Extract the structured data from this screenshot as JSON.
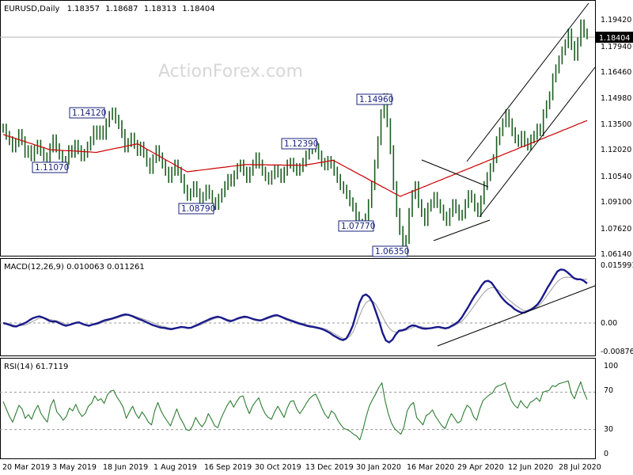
{
  "chart_data": {
    "type": "line",
    "symbol": "EURUSD,Daily",
    "ohlc": {
      "open": "1.18357",
      "high": "1.18687",
      "low": "1.18313",
      "close": "1.18404"
    },
    "current_price_label": "1.18404",
    "watermark": "ActionForex.com",
    "price_axis_ticks": [
      "1.19420",
      "1.17940",
      "1.16460",
      "1.14980",
      "1.13500",
      "1.12020",
      "1.10540",
      "1.09100",
      "1.07620",
      "1.06140"
    ],
    "price_annotations": [
      "1.14120",
      "1.11070",
      "1.08790",
      "1.12390",
      "1.14960",
      "1.07770",
      "1.06350"
    ],
    "x_axis_labels": [
      "20 Mar 2019",
      "3 May 2019",
      "18 Jun 2019",
      "1 Aug 2019",
      "16 Sep 2019",
      "30 Oct 2019",
      "13 Dec 2019",
      "30 Jan 2020",
      "16 Mar 2020",
      "29 Apr 2020",
      "12 Jun 2020",
      "28 Jul 2020"
    ],
    "price": {
      "ylim": [
        1.0614,
        1.2016
      ],
      "close": [
        1.132,
        1.128,
        1.125,
        1.121,
        1.124,
        1.129,
        1.125,
        1.118,
        1.12,
        1.116,
        1.12,
        1.123,
        1.119,
        1.116,
        1.113,
        1.121,
        1.126,
        1.121,
        1.117,
        1.112,
        1.114,
        1.12,
        1.118,
        1.123,
        1.12,
        1.116,
        1.118,
        1.122,
        1.125,
        1.131,
        1.128,
        1.131,
        1.128,
        1.135,
        1.139,
        1.141,
        1.137,
        1.134,
        1.129,
        1.121,
        1.124,
        1.127,
        1.123,
        1.119,
        1.122,
        1.118,
        1.113,
        1.109,
        1.115,
        1.12,
        1.116,
        1.112,
        1.108,
        1.104,
        1.108,
        1.112,
        1.108,
        1.104,
        1.098,
        1.094,
        1.096,
        1.1,
        1.096,
        1.092,
        1.094,
        1.098,
        1.095,
        1.091,
        1.089,
        1.093,
        1.096,
        1.1,
        1.104,
        1.102,
        1.106,
        1.11,
        1.112,
        1.108,
        1.104,
        1.108,
        1.112,
        1.116,
        1.112,
        1.108,
        1.105,
        1.103,
        1.106,
        1.109,
        1.107,
        1.104,
        1.108,
        1.112,
        1.113,
        1.11,
        1.108,
        1.11,
        1.113,
        1.117,
        1.12,
        1.124,
        1.121,
        1.117,
        1.113,
        1.111,
        1.114,
        1.112,
        1.108,
        1.104,
        1.1,
        1.098,
        1.095,
        1.091,
        1.088,
        1.083,
        1.079,
        1.078,
        1.082,
        1.09,
        1.1,
        1.112,
        1.125,
        1.14,
        1.149,
        1.135,
        1.12,
        1.1,
        1.085,
        1.075,
        1.064,
        1.07,
        1.085,
        1.095,
        1.1,
        1.09,
        1.085,
        1.08,
        1.088,
        1.09,
        1.094,
        1.09,
        1.087,
        1.083,
        1.08,
        1.085,
        1.09,
        1.087,
        1.083,
        1.084,
        1.09,
        1.095,
        1.093,
        1.088,
        1.085,
        1.092,
        1.1,
        1.105,
        1.11,
        1.115,
        1.125,
        1.13,
        1.135,
        1.14,
        1.135,
        1.13,
        1.126,
        1.124,
        1.128,
        1.124,
        1.122,
        1.126,
        1.128,
        1.132,
        1.13,
        1.14,
        1.145,
        1.15,
        1.16,
        1.165,
        1.17,
        1.175,
        1.179,
        1.185,
        1.178,
        1.172,
        1.18,
        1.19,
        1.185,
        1.184
      ],
      "ma": [
        1.1285,
        1.1279,
        1.1274,
        1.1269,
        1.1264,
        1.1258,
        1.1253,
        1.1248,
        1.1242,
        1.1237,
        1.1232,
        1.1226,
        1.1221,
        1.1216,
        1.1211,
        1.1205,
        1.12,
        1.1199,
        1.1198,
        1.1197,
        1.1196,
        1.1195,
        1.1194,
        1.1194,
        1.1193,
        1.1192,
        1.1191,
        1.119,
        1.1189,
        1.1188,
        1.1187,
        1.1186,
        1.1185,
        1.1189,
        1.1192,
        1.1196,
        1.1199,
        1.1202,
        1.1206,
        1.1209,
        1.1212,
        1.1216,
        1.1219,
        1.1223,
        1.1226,
        1.1229,
        1.1233,
        1.1224,
        1.1215,
        1.1205,
        1.1196,
        1.1187,
        1.1178,
        1.1169,
        1.1159,
        1.115,
        1.1141,
        1.1132,
        1.1123,
        1.1113,
        1.1104,
        1.1095,
        1.1086,
        1.1077,
        1.1079,
        1.1081,
        1.1083,
        1.1085,
        1.1087,
        1.1089,
        1.1091,
        1.1093,
        1.1095,
        1.1097,
        1.1099,
        1.1101,
        1.1103,
        1.1105,
        1.1107,
        1.1109,
        1.1111,
        1.1113,
        1.1115,
        1.1117,
        1.1117,
        1.1117,
        1.1116,
        1.1116,
        1.1116,
        1.1116,
        1.1116,
        1.1115,
        1.1115,
        1.1115,
        1.1115,
        1.1115,
        1.1114,
        1.1114,
        1.1114,
        1.1114,
        1.1114,
        1.1113,
        1.1113,
        1.1113,
        1.1116,
        1.1119,
        1.1121,
        1.1124,
        1.1127,
        1.113,
        1.1132,
        1.1135,
        1.1138,
        1.1141,
        1.1132,
        1.1124,
        1.1115,
        1.1106,
        1.1097,
        1.1089,
        1.108,
        1.1071,
        1.1062,
        1.1054,
        1.1045,
        1.1036,
        1.1027,
        1.1019,
        1.101,
        1.1001,
        1.0992,
        1.0984,
        1.0975,
        1.0966,
        1.0957,
        1.0949,
        1.094,
        1.0947,
        1.0953,
        1.096,
        1.0966,
        1.0973,
        1.098,
        1.0986,
        1.0993,
        1.0999,
        1.1006,
        1.1013,
        1.1019,
        1.1026,
        1.1032,
        1.1039,
        1.1046,
        1.1052,
        1.1059,
        1.1065,
        1.1072,
        1.1079,
        1.1085,
        1.1092,
        1.1098,
        1.1105,
        1.1112,
        1.1118,
        1.1125,
        1.1131,
        1.1138,
        1.1145,
        1.1151,
        1.1158,
        1.1164,
        1.1171,
        1.1178,
        1.1184,
        1.1191,
        1.1197,
        1.1204,
        1.1211,
        1.1217,
        1.1224,
        1.123,
        1.1237,
        1.1244,
        1.125,
        1.1257,
        1.1263,
        1.127,
        1.1277,
        1.1283,
        1.129,
        1.1296,
        1.1303,
        1.131,
        1.1316,
        1.1323,
        1.1329,
        1.1336,
        1.1343,
        1.1349,
        1.1356,
        1.1362
      ]
    },
    "macd": {
      "title": "MACD(12,26,9) 0.010063 0.011261",
      "ticks": [
        "0.015991",
        "0.00",
        "-0.00876"
      ],
      "ylim": [
        -0.00876,
        0.015991
      ],
      "main": [
        -0.0004,
        -0.0006,
        -0.0009,
        -0.0012,
        -0.0013,
        -0.0009,
        -0.0006,
        -0.0002,
        0.0004,
        0.0009,
        0.0012,
        0.0014,
        0.0011,
        0.0007,
        0.0002,
        0.0,
        0.0,
        -0.0004,
        -0.0008,
        -0.0011,
        -0.0009,
        -0.0006,
        -0.0003,
        -0.0002,
        -0.0006,
        -0.0009,
        -0.0011,
        -0.0008,
        -0.0006,
        -0.0003,
        0.0001,
        0.0004,
        0.0006,
        0.0008,
        0.0011,
        0.0014,
        0.0017,
        0.0019,
        0.0018,
        0.0015,
        0.0011,
        0.0007,
        0.0004,
        0.0,
        -0.0004,
        -0.0008,
        -0.0011,
        -0.0014,
        -0.0016,
        -0.0017,
        -0.0019,
        -0.002,
        -0.0018,
        -0.0016,
        -0.0014,
        -0.0015,
        -0.0017,
        -0.0016,
        -0.0012,
        -0.0008,
        -0.0004,
        0.0,
        0.0004,
        0.0008,
        0.0011,
        0.0013,
        0.0011,
        0.0007,
        0.0003,
        0.0001,
        0.0004,
        0.0008,
        0.0011,
        0.0013,
        0.0012,
        0.0009,
        0.0006,
        0.0004,
        0.0003,
        0.0006,
        0.001,
        0.0013,
        0.0016,
        0.0017,
        0.0014,
        0.001,
        0.0006,
        0.0003,
        0.0,
        -0.0003,
        -0.0006,
        -0.0008,
        -0.0011,
        -0.0013,
        -0.0014,
        -0.0016,
        -0.0018,
        -0.0021,
        -0.0025,
        -0.003,
        -0.0036,
        -0.0041,
        -0.0046,
        -0.0049,
        -0.0045,
        -0.003,
        -0.001,
        0.002,
        0.005,
        0.0068,
        0.0072,
        0.0065,
        0.005,
        0.0025,
        0.0,
        -0.003,
        -0.005,
        -0.0055,
        -0.0048,
        -0.0034,
        -0.0024,
        -0.0023,
        -0.002,
        -0.0014,
        -0.001,
        -0.0011,
        -0.0015,
        -0.0018,
        -0.0019,
        -0.0018,
        -0.0017,
        -0.0015,
        -0.0014,
        -0.0016,
        -0.0018,
        -0.0016,
        -0.0011,
        -0.0006,
        0.0,
        0.0011,
        0.0025,
        0.0039,
        0.0055,
        0.0069,
        0.0081,
        0.0096,
        0.0106,
        0.0108,
        0.0103,
        0.0091,
        0.0078,
        0.0065,
        0.0055,
        0.0047,
        0.0041,
        0.0033,
        0.0028,
        0.0024,
        0.0024,
        0.0028,
        0.0032,
        0.0038,
        0.0046,
        0.0058,
        0.0074,
        0.009,
        0.0104,
        0.0119,
        0.0133,
        0.0138,
        0.0137,
        0.0131,
        0.0123,
        0.0115,
        0.0112,
        0.0112,
        0.0108,
        0.0101
      ],
      "signal": [
        -0.0002,
        -0.0004,
        -0.0006,
        -0.0009,
        -0.0011,
        -0.0011,
        -0.001,
        -0.0008,
        -0.0004,
        0.0001,
        0.0005,
        0.0009,
        0.001,
        0.0009,
        0.0006,
        0.0004,
        0.0003,
        0.0,
        -0.0003,
        -0.0007,
        -0.0008,
        -0.0007,
        -0.0005,
        -0.0004,
        -0.0005,
        -0.0007,
        -0.0009,
        -0.0009,
        -0.0008,
        -0.0006,
        -0.0003,
        0.0,
        0.0003,
        0.0006,
        0.0008,
        0.0011,
        0.0014,
        0.0016,
        0.0017,
        0.0017,
        0.0014,
        0.0011,
        0.0008,
        0.0005,
        0.0002,
        -0.0002,
        -0.0005,
        -0.0009,
        -0.0012,
        -0.0014,
        -0.0016,
        -0.0018,
        -0.0018,
        -0.0017,
        -0.0016,
        -0.0016,
        -0.0016,
        -0.0016,
        -0.0014,
        -0.0011,
        -0.0008,
        -0.0004,
        0.0,
        0.0004,
        0.0008,
        0.001,
        0.0011,
        0.0009,
        0.0006,
        0.0004,
        0.0004,
        0.0006,
        0.0008,
        0.001,
        0.0011,
        0.001,
        0.0008,
        0.0006,
        0.0005,
        0.0005,
        0.0007,
        0.001,
        0.0013,
        0.0015,
        0.0015,
        0.0012,
        0.0009,
        0.0006,
        0.0003,
        0.0,
        -0.0003,
        -0.0005,
        -0.0008,
        -0.001,
        -0.0012,
        -0.0014,
        -0.0016,
        -0.0018,
        -0.0021,
        -0.0025,
        -0.003,
        -0.0035,
        -0.004,
        -0.0044,
        -0.0045,
        -0.004,
        -0.0028,
        -0.0008,
        0.0015,
        0.0036,
        0.005,
        0.0056,
        0.0054,
        0.0045,
        0.003,
        0.0013,
        -0.0004,
        -0.0017,
        -0.0025,
        -0.0028,
        -0.0027,
        -0.0025,
        -0.0023,
        -0.002,
        -0.0016,
        -0.0013,
        -0.0013,
        -0.0014,
        -0.0016,
        -0.0017,
        -0.0017,
        -0.0016,
        -0.0015,
        -0.0015,
        -0.0016,
        -0.0016,
        -0.0014,
        -0.001,
        -0.0005,
        0.0001,
        0.001,
        0.0021,
        0.0033,
        0.0045,
        0.0057,
        0.0069,
        0.0079,
        0.0087,
        0.009,
        0.0089,
        0.0084,
        0.0077,
        0.0068,
        0.006,
        0.0053,
        0.0045,
        0.0039,
        0.0033,
        0.0029,
        0.0029,
        0.0031,
        0.0034,
        0.004,
        0.0048,
        0.0059,
        0.0071,
        0.0083,
        0.0095,
        0.0106,
        0.0113,
        0.0117,
        0.0118,
        0.0117,
        0.0116,
        0.0114,
        0.0113,
        0.0112,
        0.0112
      ],
      "trendline_label": ""
    },
    "rsi": {
      "title": "RSI(14) 61.7119",
      "ticks": [
        "100",
        "70",
        "30",
        "0"
      ],
      "ylim": [
        0,
        100
      ],
      "levels": [
        70,
        30
      ],
      "values": [
        60,
        52,
        44,
        38,
        47,
        56,
        52,
        42,
        46,
        41,
        50,
        56,
        47,
        42,
        38,
        55,
        62,
        49,
        45,
        40,
        44,
        53,
        50,
        57,
        49,
        44,
        47,
        55,
        58,
        66,
        61,
        63,
        58,
        67,
        71,
        72,
        65,
        60,
        54,
        42,
        49,
        55,
        47,
        42,
        49,
        44,
        38,
        35,
        50,
        59,
        50,
        44,
        39,
        34,
        43,
        52,
        43,
        37,
        30,
        29,
        34,
        43,
        37,
        33,
        38,
        47,
        41,
        34,
        32,
        42,
        49,
        56,
        61,
        54,
        60,
        65,
        66,
        55,
        47,
        55,
        60,
        64,
        54,
        47,
        43,
        41,
        49,
        55,
        49,
        43,
        53,
        60,
        61,
        52,
        47,
        52,
        58,
        63,
        66,
        68,
        61,
        53,
        46,
        42,
        50,
        47,
        40,
        35,
        31,
        30,
        28,
        25,
        23,
        19,
        30,
        44,
        55,
        62,
        68,
        75,
        80,
        61,
        47,
        37,
        31,
        28,
        25,
        33,
        50,
        56,
        59,
        43,
        39,
        35,
        45,
        47,
        51,
        44,
        39,
        34,
        31,
        40,
        47,
        42,
        37,
        39,
        49,
        56,
        53,
        44,
        40,
        52,
        61,
        64,
        67,
        69,
        75,
        77,
        78,
        80,
        70,
        61,
        56,
        53,
        61,
        56,
        53,
        59,
        61,
        64,
        60,
        70,
        71,
        72,
        77,
        76,
        79,
        80,
        81,
        82,
        69,
        63,
        73,
        81,
        70,
        62
      ]
    }
  }
}
